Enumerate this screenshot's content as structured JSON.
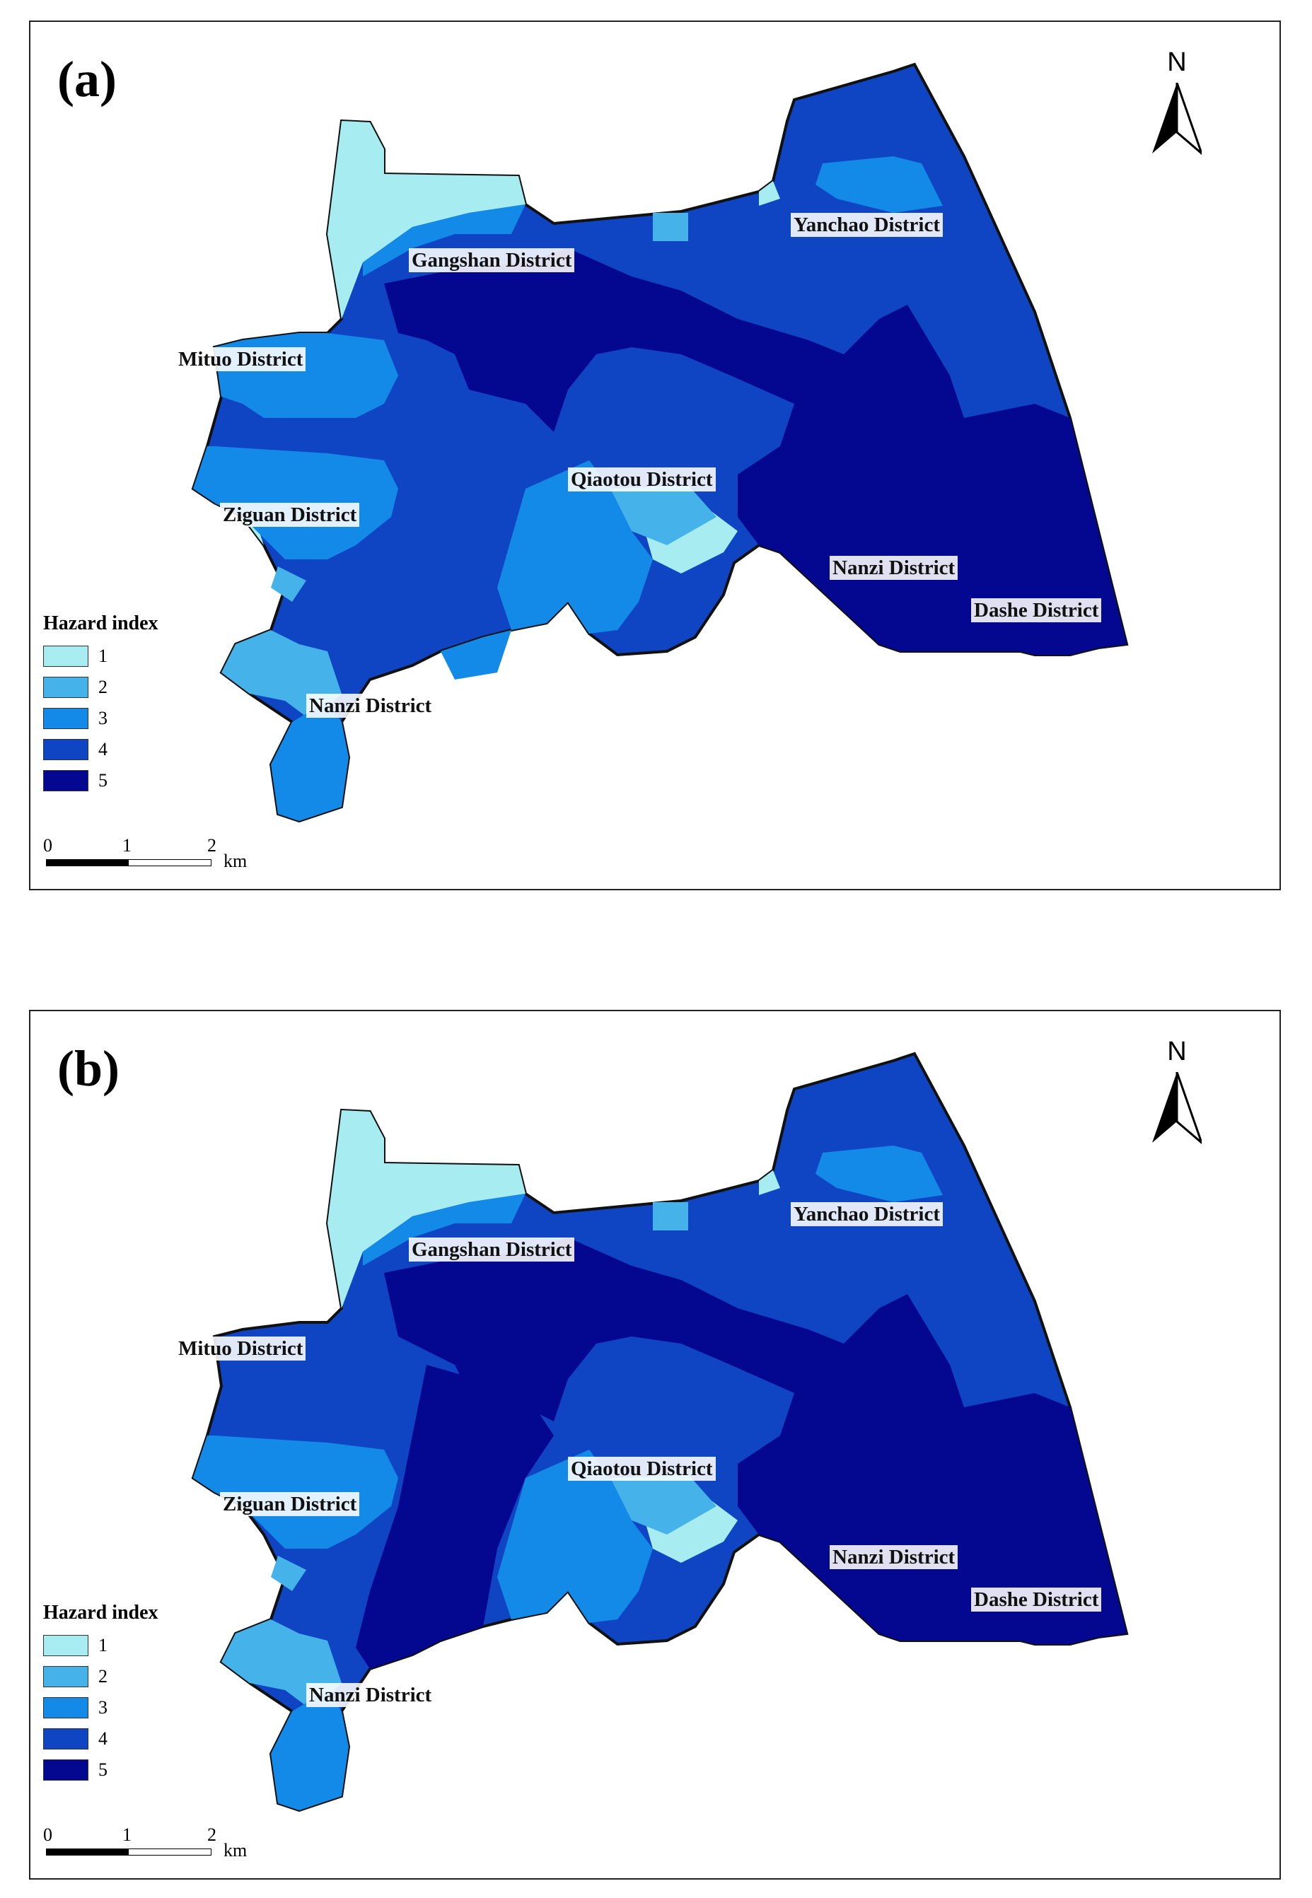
{
  "panels": [
    {
      "label": "(a)",
      "north": "N",
      "legend": {
        "title": "Hazard index",
        "items": [
          {
            "label": "1",
            "color": "#a6ecf0"
          },
          {
            "label": "2",
            "color": "#45b3ea"
          },
          {
            "label": "3",
            "color": "#138ae8"
          },
          {
            "label": "4",
            "color": "#0f45c2"
          },
          {
            "label": "5",
            "color": "#04078f"
          }
        ]
      },
      "scale": {
        "ticks": [
          "0",
          "1",
          "2"
        ],
        "unit": "km"
      },
      "districts": [
        "Gangshan District",
        "Yanchao District",
        "Mituo District",
        "Qiaotou District",
        "Ziguan District",
        "Nanzi District",
        "Dashe District",
        "Nanzi District"
      ]
    },
    {
      "label": "(b)",
      "north": "N",
      "legend": {
        "title": "Hazard index",
        "items": [
          {
            "label": "1",
            "color": "#a6ecf0"
          },
          {
            "label": "2",
            "color": "#45b3ea"
          },
          {
            "label": "3",
            "color": "#138ae8"
          },
          {
            "label": "4",
            "color": "#0f45c2"
          },
          {
            "label": "5",
            "color": "#04078f"
          }
        ]
      },
      "scale": {
        "ticks": [
          "0",
          "1",
          "2"
        ],
        "unit": "km"
      },
      "districts": [
        "Gangshan District",
        "Yanchao District",
        "Mituo District",
        "Qiaotou District",
        "Ziguan District",
        "Nanzi District",
        "Dashe District",
        "Nanzi District"
      ]
    }
  ]
}
